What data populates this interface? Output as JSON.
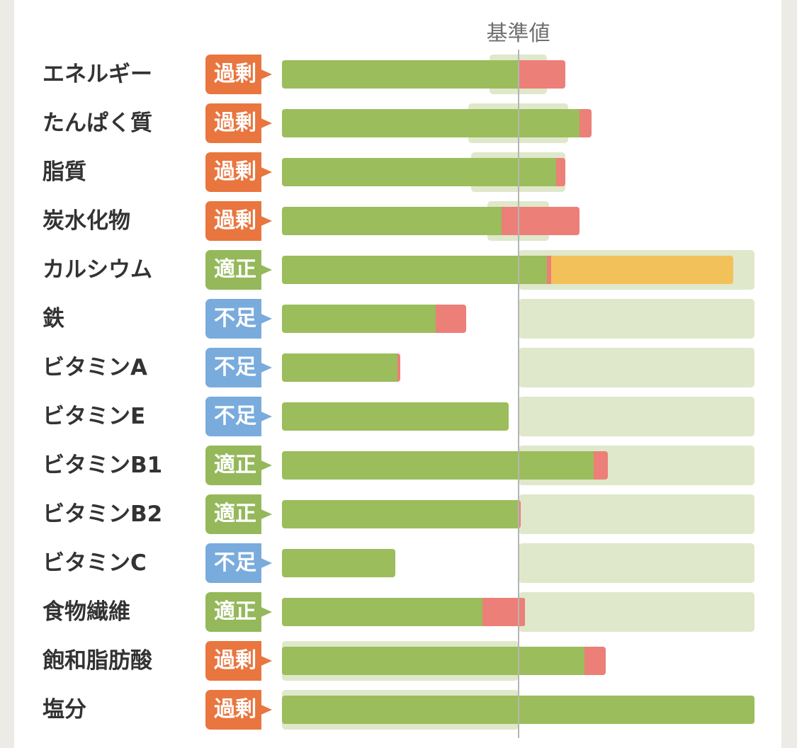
{
  "colors": {
    "over": "#e9753f",
    "ok": "#95b85a",
    "short": "#79abdc",
    "bar_green": "#9bbd5c",
    "bar_red": "#ec7f78",
    "bar_yellow": "#f3c15a",
    "range_fill": "#dfe8ca"
  },
  "status_labels": {
    "over": "過剰",
    "ok": "適正",
    "short": "不足"
  },
  "chart_data": {
    "type": "bar",
    "reference_label": "基準値",
    "reference_value": 100,
    "xlim": [
      0,
      200
    ],
    "rows": [
      {
        "name": "エネルギー",
        "status": "over",
        "range": [
          88,
          112
        ],
        "green": 100,
        "red": 20,
        "yellow": 0
      },
      {
        "name": "たんぱく質",
        "status": "over",
        "range": [
          79,
          121
        ],
        "green": 126,
        "red": 5,
        "yellow": 0
      },
      {
        "name": "脂質",
        "status": "over",
        "range": [
          80,
          120
        ],
        "green": 116,
        "red": 4,
        "yellow": 0
      },
      {
        "name": "炭水化物",
        "status": "over",
        "range": [
          87,
          113
        ],
        "green": 93,
        "red": 33,
        "yellow": 0
      },
      {
        "name": "カルシウム",
        "status": "ok",
        "range": [
          100,
          200
        ],
        "green": 112,
        "red": 2,
        "yellow": 77
      },
      {
        "name": "鉄",
        "status": "short",
        "range": [
          100,
          200
        ],
        "green": 65,
        "red": 13,
        "yellow": 0
      },
      {
        "name": "ビタミンA",
        "status": "short",
        "range": [
          100,
          200
        ],
        "green": 49,
        "red": 1,
        "yellow": 0
      },
      {
        "name": "ビタミンE",
        "status": "short",
        "range": [
          100,
          200
        ],
        "green": 96,
        "red": 0,
        "yellow": 0
      },
      {
        "name": "ビタミンB1",
        "status": "ok",
        "range": [
          100,
          200
        ],
        "green": 132,
        "red": 6,
        "yellow": 0
      },
      {
        "name": "ビタミンB2",
        "status": "ok",
        "range": [
          100,
          200
        ],
        "green": 100,
        "red": 1,
        "yellow": 0
      },
      {
        "name": "ビタミンC",
        "status": "short",
        "range": [
          100,
          200
        ],
        "green": 48,
        "red": 0,
        "yellow": 0
      },
      {
        "name": "食物繊維",
        "status": "ok",
        "range": [
          100,
          200
        ],
        "green": 85,
        "red": 18,
        "yellow": 0
      },
      {
        "name": "飽和脂肪酸",
        "status": "over",
        "range": [
          0,
          100
        ],
        "green": 128,
        "red": 9,
        "yellow": 0
      },
      {
        "name": "塩分",
        "status": "over",
        "range": [
          0,
          100
        ],
        "green": 200,
        "red": 0,
        "yellow": 0
      }
    ]
  }
}
